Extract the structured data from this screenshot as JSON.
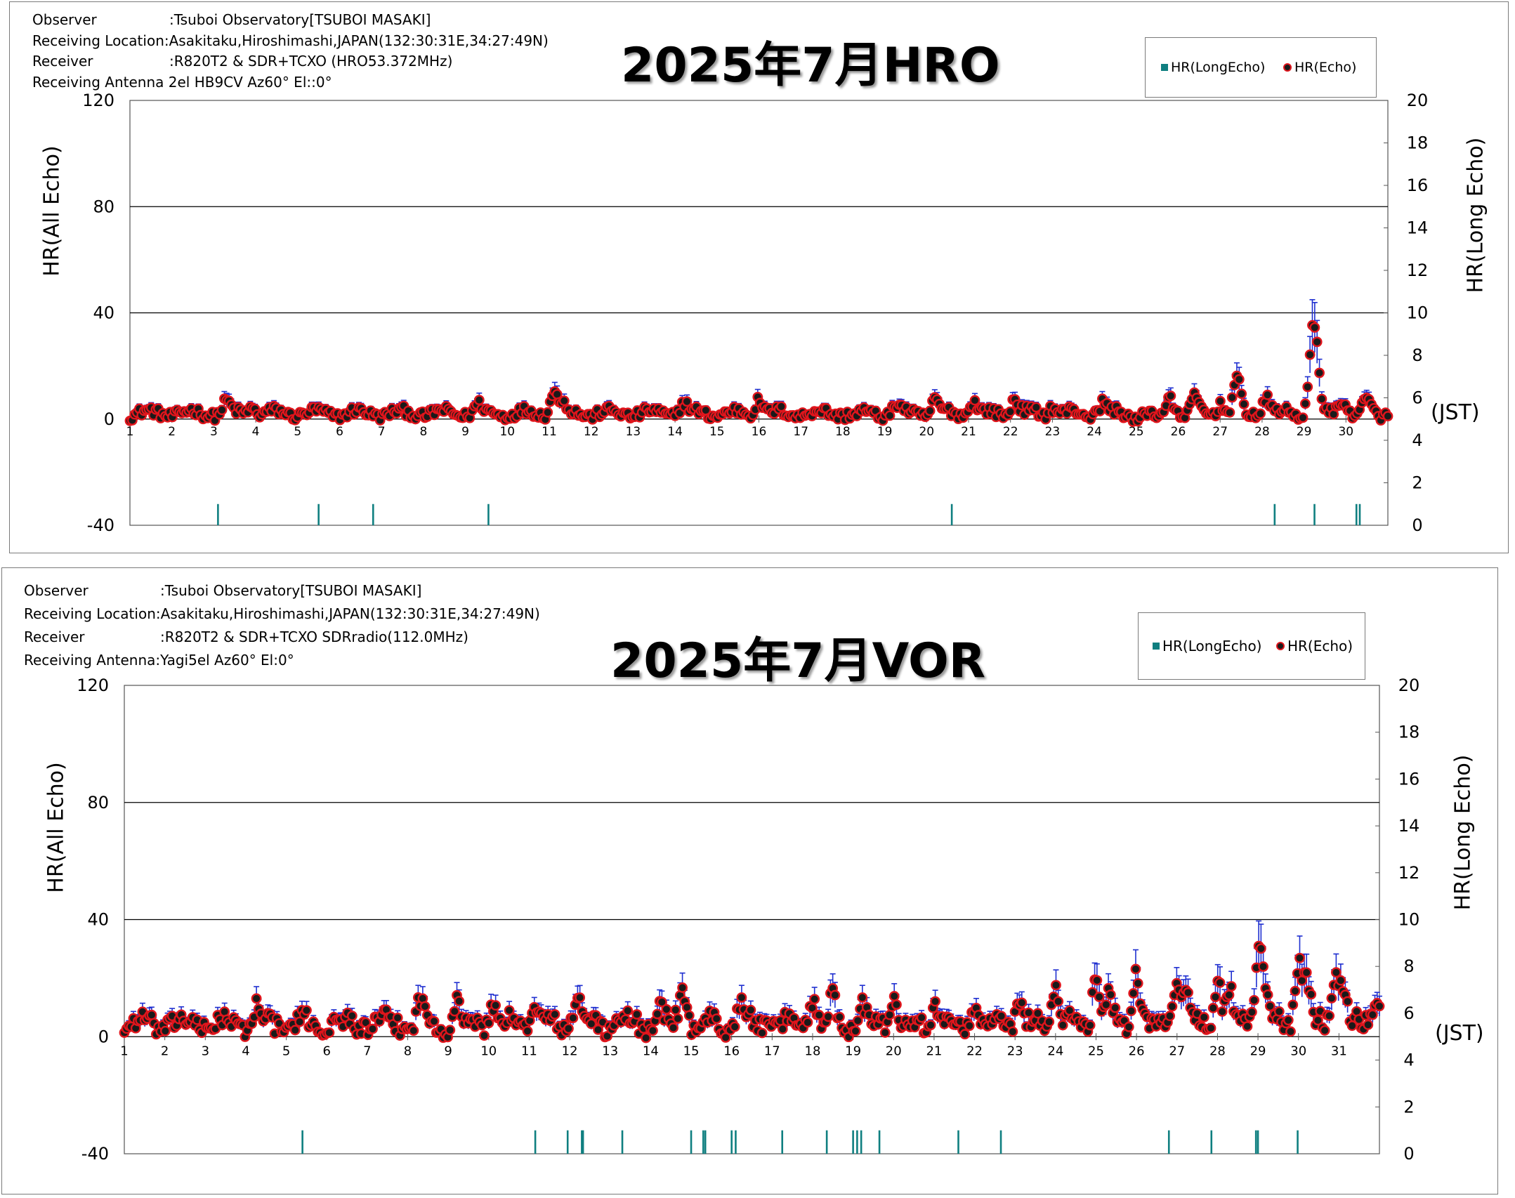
{
  "colors": {
    "echo_fill": "#1a1a1a",
    "echo_edge": "#e0151c",
    "error_bar": "#1f2fd0",
    "long_echo": "#0f7f80",
    "grid": "#000000"
  },
  "chart_data": [
    {
      "type": "scatter",
      "title": "2025年7月HRO",
      "info": {
        "observer_key": "Observer",
        "observer_val": ":Tsuboi Observatory[TSUBOI MASAKI]",
        "location_key": "Receiving Location",
        "location_val": ":Asakitaku,Hiroshimashi,JAPAN(132:30:31E,34:27:49N)",
        "receiver_key": "Receiver",
        "receiver_val": ":R820T2 & SDR+TCXO (HRO53.372MHz)",
        "antenna_key": "Receiving Antenna",
        "antenna_val": " 2el HB9CV Az60°  El::0°"
      },
      "ylabel": "HR(All Echo)",
      "y2label": "HR(Long Echo)",
      "xlabel": "(JST)",
      "ylim": [
        -40,
        120
      ],
      "yticks": [
        "120",
        "80",
        "40",
        "0",
        "-40"
      ],
      "y2lim": [
        0,
        20
      ],
      "y2ticks": [
        "20",
        "18",
        "16",
        "14",
        "12",
        "10",
        "8",
        "6",
        "4",
        "2",
        "0"
      ],
      "grid": true,
      "legend_position": "top-right",
      "xlim": [
        1,
        31
      ],
      "xticks": [
        "1",
        "2",
        "3",
        "4",
        "5",
        "6",
        "7",
        "8",
        "9",
        "10",
        "11",
        "12",
        "13",
        "14",
        "15",
        "16",
        "17",
        "18",
        "19",
        "20",
        "21",
        "22",
        "23",
        "24",
        "25",
        "26",
        "27",
        "28",
        "29",
        "30"
      ],
      "series": [
        {
          "name": "HR(LongEcho)",
          "kind": "long_echo",
          "x": [
            3.1,
            5.5,
            6.8,
            9.55,
            20.6,
            28.3,
            29.25,
            30.25,
            30.33
          ],
          "values": [
            1,
            1,
            1,
            1,
            1,
            1,
            1,
            1,
            1
          ]
        },
        {
          "name": "HR(Echo)",
          "kind": "echo",
          "baseline": 2,
          "amplitude": 3,
          "peaks": [
            [
              3.3,
              4
            ],
            [
              3.9,
              3
            ],
            [
              9.3,
              3
            ],
            [
              11.1,
              8
            ],
            [
              11.3,
              4
            ],
            [
              14.2,
              4
            ],
            [
              16.0,
              6
            ],
            [
              18.3,
              -1
            ],
            [
              19.3,
              3
            ],
            [
              20.2,
              5
            ],
            [
              21.1,
              5
            ],
            [
              22.1,
              6
            ],
            [
              23.0,
              3
            ],
            [
              24.2,
              4
            ],
            [
              25.0,
              -2
            ],
            [
              25.5,
              -2
            ],
            [
              25.8,
              6
            ],
            [
              26.4,
              5
            ],
            [
              27.0,
              4
            ],
            [
              27.4,
              12
            ],
            [
              28.1,
              6
            ],
            [
              29.2,
              24
            ],
            [
              29.3,
              15
            ],
            [
              29.9,
              6
            ],
            [
              30.5,
              4
            ]
          ]
        }
      ]
    },
    {
      "type": "scatter",
      "title": "2025年7月VOR",
      "info": {
        "observer_key": "Observer",
        "observer_val": ":Tsuboi Observatory[TSUBOI MASAKI]",
        "location_key": "Receiving Location",
        "location_val": ":Asakitaku,Hiroshimashi,JAPAN(132:30:31E,34:27:49N)",
        "receiver_key": "Receiver",
        "receiver_val": ":R820T2 & SDR+TCXO SDRradio(112.0MHz)",
        "antenna_key": "Receiving Antenna",
        "antenna_val": ":Yagi5el  Az60°  El:0°"
      },
      "ylabel": "HR(All Echo)",
      "y2label": "HR(Long Echo)",
      "xlabel": "(JST)",
      "ylim": [
        -40,
        120
      ],
      "yticks": [
        "120",
        "80",
        "40",
        "0",
        "-40"
      ],
      "y2lim": [
        0,
        20
      ],
      "y2ticks": [
        "20",
        "18",
        "16",
        "14",
        "12",
        "10",
        "8",
        "6",
        "4",
        "2",
        "0"
      ],
      "grid": true,
      "legend_position": "top-right",
      "xlim": [
        1,
        32
      ],
      "xticks": [
        "1",
        "2",
        "3",
        "4",
        "5",
        "6",
        "7",
        "8",
        "9",
        "10",
        "11",
        "12",
        "13",
        "14",
        "15",
        "16",
        "17",
        "18",
        "19",
        "20",
        "21",
        "22",
        "23",
        "24",
        "25",
        "26",
        "27",
        "28",
        "29",
        "30",
        "31"
      ],
      "series": [
        {
          "name": "HR(LongEcho)",
          "kind": "long_echo",
          "x": [
            5.4,
            11.15,
            11.95,
            12.3,
            12.33,
            13.3,
            15.0,
            15.3,
            15.35,
            16.0,
            16.1,
            17.25,
            18.35,
            19.0,
            19.1,
            19.2,
            19.65,
            21.6,
            22.65,
            26.8,
            27.85,
            28.95,
            29.0,
            29.98
          ],
          "values": [
            1,
            1,
            1,
            1,
            1,
            1,
            1,
            1,
            1,
            1,
            1,
            1,
            1,
            1,
            1,
            1,
            1,
            1,
            1,
            1,
            1,
            1,
            1,
            1
          ]
        },
        {
          "name": "HR(Echo)",
          "kind": "echo",
          "baseline": 4,
          "amplitude": 5,
          "peaks": [
            [
              4.3,
              6
            ],
            [
              8.3,
              7
            ],
            [
              9.2,
              7
            ],
            [
              10.1,
              7
            ],
            [
              11.1,
              8
            ],
            [
              12.2,
              9
            ],
            [
              14.2,
              6
            ],
            [
              14.8,
              12
            ],
            [
              16.2,
              7
            ],
            [
              18.0,
              10
            ],
            [
              18.5,
              8
            ],
            [
              19.2,
              8
            ],
            [
              20.0,
              12
            ],
            [
              21.0,
              7
            ],
            [
              22.0,
              6
            ],
            [
              23.1,
              8
            ],
            [
              24.0,
              14
            ],
            [
              25.0,
              18
            ],
            [
              25.3,
              10
            ],
            [
              26.0,
              20
            ],
            [
              27.0,
              16
            ],
            [
              27.2,
              10
            ],
            [
              28.0,
              17
            ],
            [
              28.3,
              10
            ],
            [
              29.0,
              22
            ],
            [
              29.15,
              14
            ],
            [
              30.0,
              22
            ],
            [
              30.2,
              14
            ],
            [
              30.9,
              18
            ],
            [
              31.1,
              14
            ],
            [
              31.9,
              10
            ]
          ]
        }
      ]
    }
  ]
}
